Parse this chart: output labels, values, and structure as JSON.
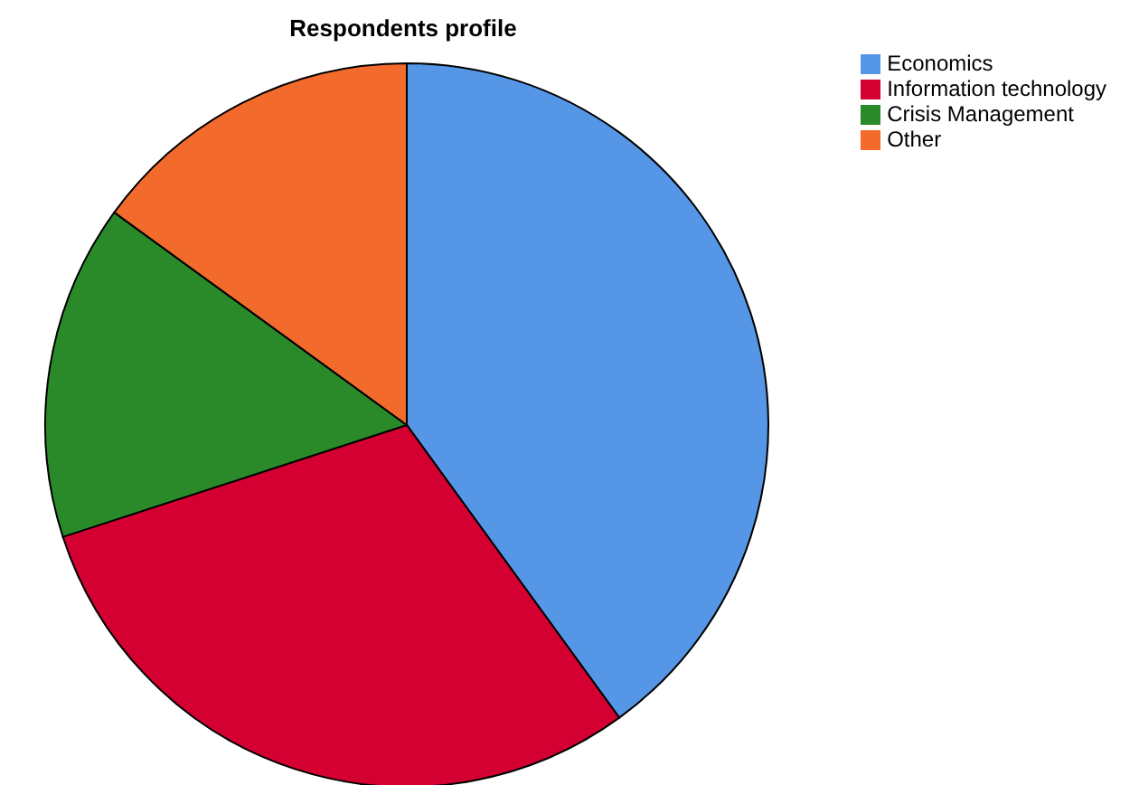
{
  "chart_data": {
    "type": "pie",
    "title": "Respondents profile",
    "categories": [
      "Economics",
      "Information technology",
      "Crisis Management",
      "Other"
    ],
    "values": [
      40,
      30,
      15,
      15
    ],
    "colors": [
      "#5597e6",
      "#d50032",
      "#2a8a2a",
      "#f26a2c"
    ],
    "legend": "top right"
  }
}
